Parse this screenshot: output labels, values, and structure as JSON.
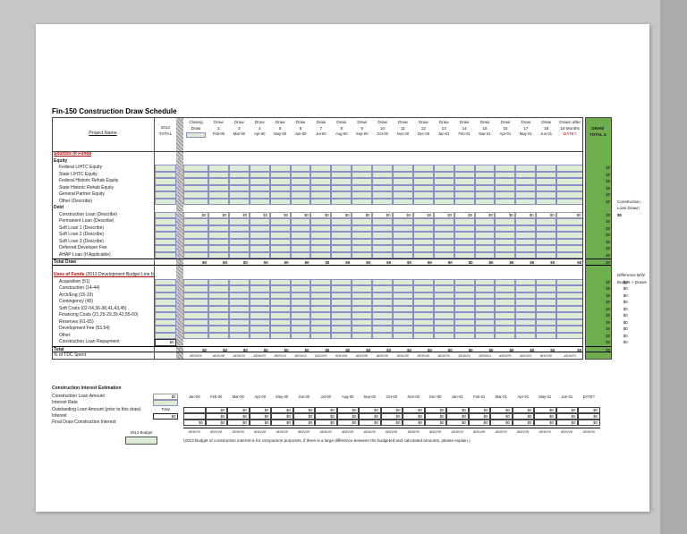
{
  "title": "Fin-150 Construction Draw Schedule",
  "colors": {
    "input_green": "#dcecd5",
    "header_green": "#6fae4e",
    "accent_red": "#b00000",
    "page_background": "#c6c6c6"
  },
  "main_table": {
    "project_name_label": "Project Name",
    "total_col_header": [
      "2013",
      "TOTAL"
    ],
    "closing_header": [
      "Closing",
      "Draw"
    ],
    "draw_word": "Draw",
    "draw_numbers": [
      "2",
      "3",
      "4",
      "5",
      "6",
      "7",
      "8",
      "9",
      "10",
      "11",
      "12",
      "13",
      "14",
      "15",
      "16",
      "17",
      "18"
    ],
    "draw_months": [
      "Feb-00",
      "Mar-00",
      "Apr-00",
      "May-00",
      "Jun-00",
      "Jul-00",
      "Aug-00",
      "Sep-00",
      "Oct-00",
      "Nov-00",
      "Dec-00",
      "Jan-01",
      "Feb-01",
      "Mar-01",
      "Apr-01",
      "May-01",
      "Jun-01"
    ],
    "after_header": [
      "Drawn after",
      "18 Months",
      "DATE?"
    ],
    "green_header": [
      "DRAW",
      "TOTAL $"
    ],
    "zero_value": "$0",
    "div0_value": "#DIV/0!",
    "rows": [
      {
        "label": "Sources of Funds",
        "type": "section_red"
      },
      {
        "label": "Equity",
        "type": "section_bold"
      },
      {
        "label": "Federal LIHTC Equity",
        "type": "input",
        "indent": true,
        "t13": "g",
        "green": "$0"
      },
      {
        "label": "State LIHTC Equity",
        "type": "input",
        "indent": true,
        "t13": "g",
        "green": "$0"
      },
      {
        "label": "Federal Historic Rehab Equity",
        "type": "input",
        "indent": true,
        "t13": "g",
        "green": "$0"
      },
      {
        "label": "State Historic Rehab Equity",
        "type": "input",
        "indent": true,
        "t13": "g",
        "green": "$0"
      },
      {
        "label": "General Partner Equity",
        "type": "input",
        "indent": true,
        "t13": "g",
        "green": "$0"
      },
      {
        "label": "Other (Describe)",
        "type": "input",
        "indent": true,
        "t13": "g",
        "green": "$0"
      },
      {
        "label": "Debt",
        "type": "section_bold"
      },
      {
        "label": "Construction Loan (Describe)",
        "type": "calc",
        "indent": true,
        "t13": "g",
        "green": "$0"
      },
      {
        "label": "Permanent Loan (Describe)",
        "type": "input",
        "indent": true,
        "t13": "g",
        "green": "$0"
      },
      {
        "label": "Soft Loan 1 (Describe)",
        "type": "input",
        "indent": true,
        "t13": "g",
        "green": "$0"
      },
      {
        "label": "Soft Loan 2 (Describe)",
        "type": "input",
        "indent": true,
        "t13": "g",
        "green": "$0"
      },
      {
        "label": "Soft Loan 3 (Describe)",
        "type": "input",
        "indent": true,
        "t13": "g",
        "green": "$0"
      },
      {
        "label": "Deferred Developer Fee",
        "type": "input",
        "indent": true,
        "t13": "g",
        "green": "$0"
      },
      {
        "label": "AHAP Loan (If Applicable)",
        "type": "input",
        "indent": true,
        "t13": "g",
        "green": "$0"
      },
      {
        "label": "Total Draw",
        "type": "total",
        "green": "$0"
      },
      {
        "type": "blank"
      },
      {
        "label": "Uses of Funds",
        "sub": " (2013 Development Budget Line Item)",
        "type": "section_red"
      },
      {
        "label": "Acquisition (51)",
        "type": "input",
        "indent": true,
        "t13": "g",
        "green": "$0",
        "diff": "$0"
      },
      {
        "label": "Construction (14-44)",
        "type": "input",
        "indent": true,
        "t13": "g",
        "green": "$0",
        "diff": "$0"
      },
      {
        "label": "Arch/Eng (15-19)",
        "type": "input",
        "indent": true,
        "t13": "g",
        "green": "$0",
        "diff": "$0"
      },
      {
        "label": "Contingency (45)",
        "type": "input",
        "indent": true,
        "t13": "g",
        "green": "$0",
        "diff": "$0"
      },
      {
        "label": "Soft Costs (02-04,36-38,41,43,45)",
        "type": "input",
        "indent": true,
        "t13": "g",
        "green": "$0",
        "diff": "$0"
      },
      {
        "label": "Financing Costs (21,25-29,39,42,55-60)",
        "type": "input",
        "indent": true,
        "t13": "g",
        "green": "$0",
        "diff": "$0"
      },
      {
        "label": "Reserves (61-65)",
        "type": "input",
        "indent": true,
        "t13": "g",
        "green": "$0",
        "diff": "$0"
      },
      {
        "label": "Development Fee (53,54)",
        "type": "input",
        "indent": true,
        "t13": "g",
        "green": "$0",
        "diff": "$0"
      },
      {
        "label": "Other",
        "type": "input",
        "indent": true,
        "t13": "g",
        "green": "$0",
        "diff": "$0"
      },
      {
        "label": "Construction Loan Repayment",
        "type": "plain",
        "indent": true,
        "t13": "v",
        "green": "$0",
        "diff": "$0"
      },
      {
        "label": "Total",
        "type": "total",
        "green": "$0"
      },
      {
        "label": "% of TDC Spent",
        "type": "percent"
      }
    ]
  },
  "annotations": {
    "construction_loan_drawn": [
      "Construction",
      "Loan Drawn",
      "$0"
    ],
    "difference": [
      "Difference B/W",
      "Budget + Draws"
    ]
  },
  "interest": {
    "title": "Construction Interest Estimation",
    "rows": [
      {
        "label": "Construction Loan Amount",
        "value": "$0",
        "style": "plain"
      },
      {
        "label": "Interest Rate",
        "value": "",
        "style": "green"
      },
      {
        "label": "Outstanding Loan Amount (prior to this draw)",
        "value": "Total",
        "style": "text"
      },
      {
        "label": "Interest",
        "value": "$0",
        "style": "boxed"
      },
      {
        "label": "Final Draw Construction Interest",
        "value": "",
        "style": "none"
      }
    ],
    "months": [
      "Jan-00",
      "Feb-00",
      "Mar-00",
      "Apr-00",
      "May-00",
      "Jun-00",
      "Jul-00",
      "Aug-00",
      "Sep-00",
      "Oct-00",
      "Nov-00",
      "Dec-00",
      "Jan-01",
      "Feb-01",
      "Mar-01",
      "Apr-01",
      "May-01",
      "Jun-01",
      "DATE?"
    ],
    "zero_value": "$0",
    "div0_value": "#DIV/0!",
    "legend_label": "2013 Budget",
    "footnote": "(2013 Budget of construction interest is for comparison purposes, if there is a large difference between the budgeted and calculated amounts, please explain.)"
  }
}
